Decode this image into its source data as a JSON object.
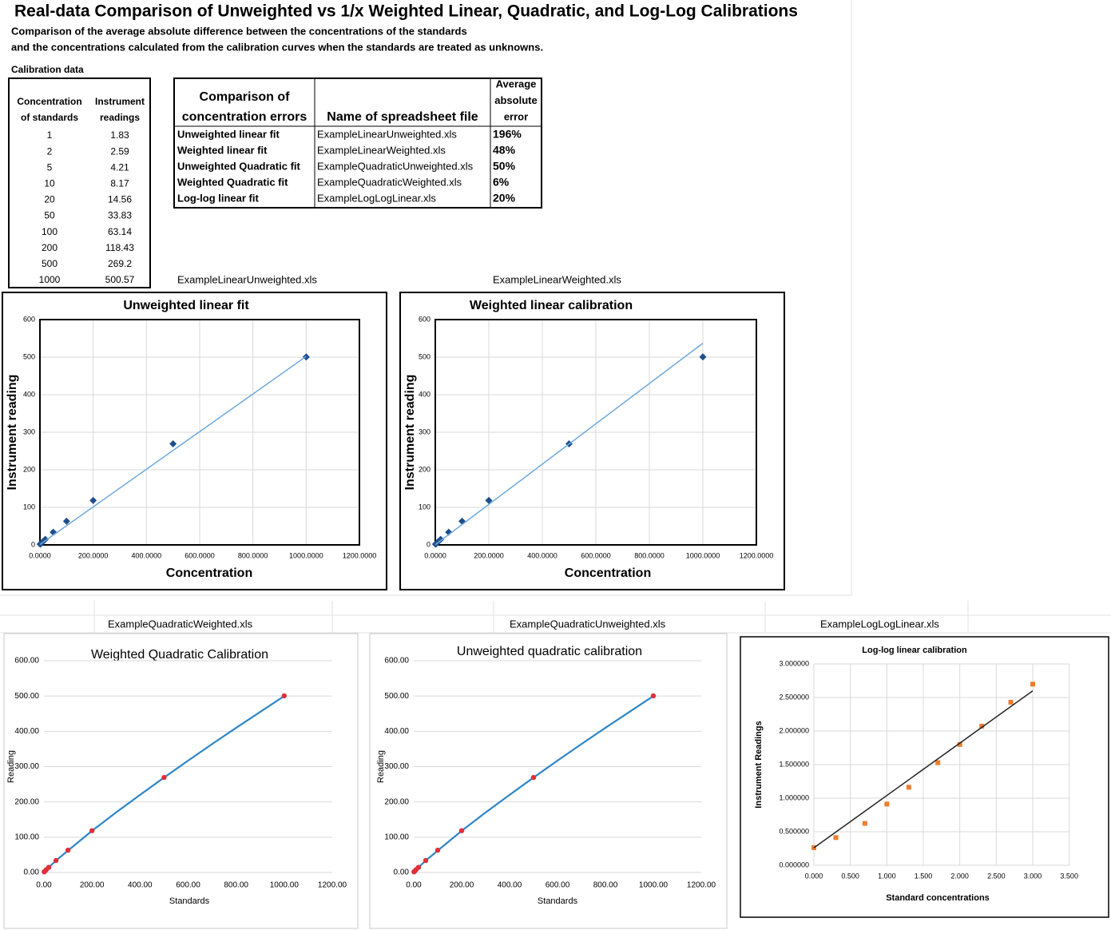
{
  "header": {
    "title": "Real-data Comparison of Unweighted vs 1/x Weighted Linear, Quadratic, and Log-Log Calibrations",
    "subtitle": [
      "Comparison of the average absolute difference between the concentrations of the standards",
      "and the concentrations calculated from the calibration curves when the standards are treated as unknowns."
    ]
  },
  "calibration_table": {
    "caption": "Calibration data",
    "headers": [
      [
        "Concentration",
        "of standards"
      ],
      [
        "Instrument",
        "readings"
      ]
    ],
    "rows": [
      [
        1,
        1.83
      ],
      [
        2,
        2.59
      ],
      [
        5,
        4.21
      ],
      [
        10,
        8.17
      ],
      [
        20,
        14.56
      ],
      [
        50,
        33.83
      ],
      [
        100,
        63.14
      ],
      [
        200,
        118.43
      ],
      [
        500,
        269.2
      ],
      [
        1000,
        500.57
      ]
    ]
  },
  "comparison_table": {
    "headers": [
      [
        "Comparison of",
        "concentration errors"
      ],
      [
        "Name of spreadsheet file"
      ],
      [
        "Average",
        "absolute",
        "error"
      ]
    ],
    "rows": [
      [
        "Unweighted linear fit",
        "ExampleLinearUnweighted.xls",
        "196%"
      ],
      [
        "Weighted linear fit",
        "ExampleLinearWeighted.xls",
        "48%"
      ],
      [
        "Unweighted Quadratic fit",
        "ExampleQuadraticUnweighted.xls",
        "50%"
      ],
      [
        "Weighted Quadratic fit",
        "ExampleQuadraticWeighted.xls",
        "6%"
      ],
      [
        "Log-log linear fit",
        "ExampleLogLogLinear.xls",
        "20%"
      ]
    ]
  },
  "file_labels": [
    "ExampleLinearUnweighted.xls",
    "ExampleLinearWeighted.xls",
    "ExampleQuadraticWeighted.xls",
    "ExampleQuadraticUnweighted.xls",
    "ExampleLogLogLinear.xls"
  ],
  "chart_data": [
    {
      "type": "scatter",
      "title": "Unweighted linear fit",
      "x_label": "Concentration",
      "y_label": "Instrument reading",
      "xlim": [
        0,
        1200
      ],
      "xticks": [
        {
          "value": 0,
          "label": "0.0000"
        },
        {
          "value": 200,
          "label": "200.0000"
        },
        {
          "value": 400,
          "label": "400.0000"
        },
        {
          "value": 600,
          "label": "600.0000"
        },
        {
          "value": 800,
          "label": "800.0000"
        },
        {
          "value": 1000,
          "label": "1000.0000"
        },
        {
          "value": 1200,
          "label": "1200.0000"
        }
      ],
      "ylim": [
        0,
        600
      ],
      "yticks": [
        0,
        100,
        200,
        300,
        400,
        500,
        600
      ],
      "grid": "both",
      "series": [
        {
          "type": "scatter",
          "marker": "diamond",
          "color": "#1f4e8c",
          "x": [
            1,
            2,
            5,
            10,
            20,
            50,
            100,
            200,
            500,
            1000
          ],
          "values": [
            1.83,
            2.59,
            4.21,
            8.17,
            14.56,
            33.83,
            63.14,
            118.43,
            269.2,
            500.57
          ]
        },
        {
          "type": "line",
          "color": "#6fa8dc",
          "x": [
            0,
            1000
          ],
          "values": [
            1,
            502
          ]
        }
      ]
    },
    {
      "type": "scatter",
      "title": "Weighted linear calibration",
      "x_label": "Concentration",
      "y_label": "Instrument reading",
      "xlim": [
        0,
        1200
      ],
      "xticks": [
        {
          "value": 0,
          "label": "0.0000"
        },
        {
          "value": 200,
          "label": "200.0000"
        },
        {
          "value": 400,
          "label": "400.0000"
        },
        {
          "value": 600,
          "label": "600.0000"
        },
        {
          "value": 800,
          "label": "800.0000"
        },
        {
          "value": 1000,
          "label": "1000.0000"
        },
        {
          "value": 1200,
          "label": "1200.0000"
        }
      ],
      "ylim": [
        0,
        600
      ],
      "yticks": [
        0,
        100,
        200,
        300,
        400,
        500,
        600
      ],
      "grid": "both",
      "series": [
        {
          "type": "scatter",
          "marker": "diamond",
          "color": "#1f4e8c",
          "x": [
            1,
            2,
            5,
            10,
            20,
            50,
            100,
            200,
            500,
            1000
          ],
          "values": [
            1.83,
            2.59,
            4.21,
            8.17,
            14.56,
            33.83,
            63.14,
            118.43,
            269.2,
            500.57
          ]
        },
        {
          "type": "line",
          "color": "#6fa8dc",
          "x": [
            0,
            1000
          ],
          "values": [
            0.5,
            537
          ]
        }
      ]
    },
    {
      "type": "scatter",
      "title": "Weighted Quadratic Calibration",
      "x_label": "Standards",
      "y_label": "Reading",
      "xlim": [
        0,
        1200
      ],
      "xticks": [
        {
          "value": 0,
          "label": "0.00"
        },
        {
          "value": 200,
          "label": "200.00"
        },
        {
          "value": 400,
          "label": "400.00"
        },
        {
          "value": 600,
          "label": "600.00"
        },
        {
          "value": 800,
          "label": "800.00"
        },
        {
          "value": 1000,
          "label": "1000.00"
        },
        {
          "value": 1200,
          "label": "1200.00"
        }
      ],
      "ylim": [
        0,
        600
      ],
      "yticks": [
        {
          "value": 0,
          "label": "0.00"
        },
        {
          "value": 100,
          "label": "100.00"
        },
        {
          "value": 200,
          "label": "200.00"
        },
        {
          "value": 300,
          "label": "300.00"
        },
        {
          "value": 400,
          "label": "400.00"
        },
        {
          "value": 500,
          "label": "500.00"
        },
        {
          "value": 600,
          "label": "600.00"
        }
      ],
      "grid": "y",
      "series": [
        {
          "type": "line",
          "color": "#2e86c8",
          "x": [
            0,
            20,
            50,
            100,
            200,
            300,
            400,
            500,
            600,
            700,
            800,
            900,
            1000
          ],
          "values": [
            1.5,
            14.5,
            33.5,
            62,
            118,
            170,
            220,
            269,
            317,
            364,
            410,
            455,
            500
          ]
        },
        {
          "type": "scatter",
          "marker": "circle",
          "color": "#e0303a",
          "x": [
            1,
            2,
            5,
            10,
            20,
            50,
            100,
            200,
            500,
            1000
          ],
          "values": [
            1.83,
            2.59,
            4.21,
            8.17,
            14.56,
            33.83,
            63.14,
            118.43,
            269.2,
            500.57
          ]
        }
      ]
    },
    {
      "type": "scatter",
      "title": "Unweighted quadratic calibration",
      "x_label": "Standards",
      "y_label": "Reading",
      "xlim": [
        0,
        1200
      ],
      "xticks": [
        {
          "value": 0,
          "label": "0.00"
        },
        {
          "value": 200,
          "label": "200.00"
        },
        {
          "value": 400,
          "label": "400.00"
        },
        {
          "value": 600,
          "label": "600.00"
        },
        {
          "value": 800,
          "label": "800.00"
        },
        {
          "value": 1000,
          "label": "1000.00"
        },
        {
          "value": 1200,
          "label": "1200.00"
        }
      ],
      "ylim": [
        0,
        600
      ],
      "yticks": [
        {
          "value": 0,
          "label": "0.00"
        },
        {
          "value": 100,
          "label": "100.00"
        },
        {
          "value": 200,
          "label": "200.00"
        },
        {
          "value": 300,
          "label": "300.00"
        },
        {
          "value": 400,
          "label": "400.00"
        },
        {
          "value": 500,
          "label": "500.00"
        },
        {
          "value": 600,
          "label": "600.00"
        }
      ],
      "grid": "y",
      "series": [
        {
          "type": "line",
          "color": "#2e86c8",
          "x": [
            0,
            20,
            50,
            100,
            200,
            300,
            400,
            500,
            600,
            700,
            800,
            900,
            1000
          ],
          "values": [
            1.5,
            14.5,
            33.5,
            62,
            118,
            170,
            220,
            269,
            317,
            364,
            410,
            455,
            500
          ]
        },
        {
          "type": "scatter",
          "marker": "circle",
          "color": "#e0303a",
          "x": [
            1,
            2,
            5,
            10,
            20,
            50,
            100,
            200,
            500,
            1000
          ],
          "values": [
            1.83,
            2.59,
            4.21,
            8.17,
            14.56,
            33.83,
            63.14,
            118.43,
            269.2,
            500.57
          ]
        }
      ]
    },
    {
      "type": "scatter",
      "title": "Log-log linear calibration",
      "x_label": "Standard concentrations",
      "y_label": "Instrument Readings",
      "xlim": [
        0,
        3.5
      ],
      "xticks": [
        {
          "value": 0,
          "label": "0.000"
        },
        {
          "value": 0.5,
          "label": "0.500"
        },
        {
          "value": 1,
          "label": "1.000"
        },
        {
          "value": 1.5,
          "label": "1.500"
        },
        {
          "value": 2,
          "label": "2.000"
        },
        {
          "value": 2.5,
          "label": "2.500"
        },
        {
          "value": 3,
          "label": "3.000"
        },
        {
          "value": 3.5,
          "label": "3.500"
        }
      ],
      "ylim": [
        0,
        3
      ],
      "yticks": [
        {
          "value": 0,
          "label": "0.000000"
        },
        {
          "value": 0.5,
          "label": "0.500000"
        },
        {
          "value": 1,
          "label": "1.000000"
        },
        {
          "value": 1.5,
          "label": "1.500000"
        },
        {
          "value": 2,
          "label": "2.000000"
        },
        {
          "value": 2.5,
          "label": "2.500000"
        },
        {
          "value": 3,
          "label": "3.000000"
        }
      ],
      "grid": "both",
      "series": [
        {
          "type": "scatter",
          "marker": "square",
          "color": "#ed7d31",
          "x": [
            0,
            0.301,
            0.699,
            1,
            1.301,
            1.699,
            2,
            2.301,
            2.699,
            3
          ],
          "values": [
            0.262,
            0.413,
            0.624,
            0.912,
            1.163,
            1.529,
            1.8,
            2.073,
            2.43,
            2.699
          ]
        },
        {
          "type": "line",
          "color": "#222222",
          "x": [
            0,
            3
          ],
          "values": [
            0.26,
            2.6
          ]
        }
      ]
    }
  ]
}
